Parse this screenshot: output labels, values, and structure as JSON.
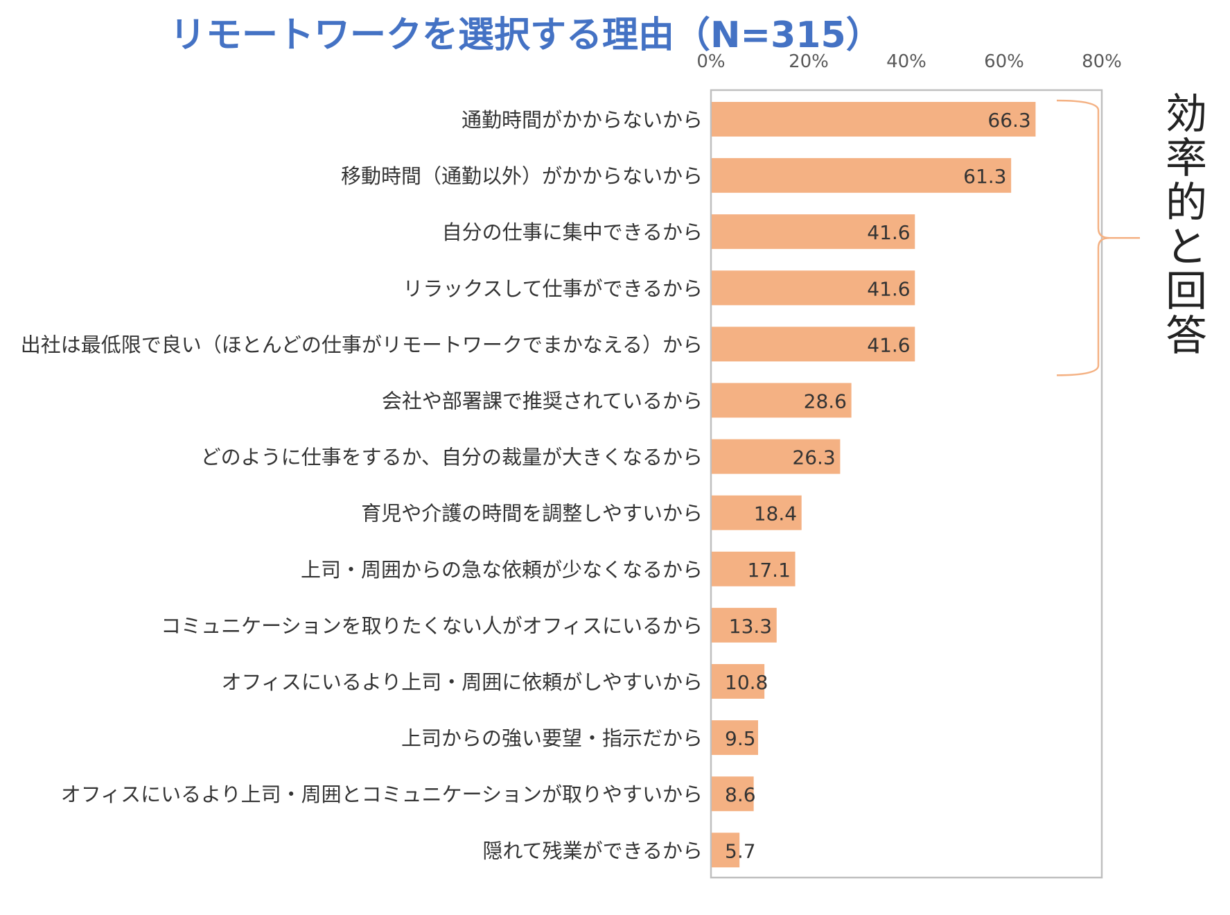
{
  "chart_data": {
    "type": "bar",
    "orientation": "horizontal",
    "title": "リモートワークを選択する理由（N=315）",
    "x_ticks": [
      "0%",
      "20%",
      "40%",
      "60%",
      "80%"
    ],
    "xlim": [
      0,
      80
    ],
    "categories": [
      "通勤時間がかからないから",
      "移動時間（通勤以外）がかからないから",
      "自分の仕事に集中できるから",
      "リラックスして仕事ができるから",
      "出社は最低限で良い（ほとんどの仕事がリモートワークでまかなえる）から",
      "会社や部署課で推奨されているから",
      "どのように仕事をするか、自分の裁量が大きくなるから",
      "育児や介護の時間を調整しやすいから",
      "上司・周囲からの急な依頼が少なくなるから",
      "コミュニケーションを取りたくない人がオフィスにいるから",
      "オフィスにいるより上司・周囲に依頼がしやすいから",
      "上司からの強い要望・指示だから",
      "オフィスにいるより上司・周囲とコミュニケーションが取りやすいから",
      "隠れて残業ができるから"
    ],
    "values": [
      66.3,
      61.3,
      41.6,
      41.6,
      41.6,
      28.6,
      26.3,
      18.4,
      17.1,
      13.3,
      10.8,
      9.5,
      8.6,
      5.7
    ],
    "value_labels": [
      "66.3",
      "61.3",
      "41.6",
      "41.6",
      "41.6",
      "28.6",
      "26.3",
      "18.4",
      "17.1",
      "13.3",
      "10.8",
      "9.5",
      "8.6",
      "5.7"
    ],
    "annotation": {
      "text": "効率的と回答",
      "bracket_from_category": 0,
      "bracket_to_category": 4
    },
    "colors": {
      "bar": "#F4B183",
      "title": "#4472C4",
      "bracket": "#F4B183",
      "frame": "#BFBFBF",
      "text": "#333333"
    }
  }
}
